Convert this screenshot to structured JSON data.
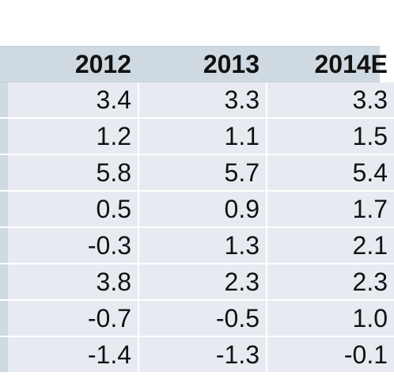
{
  "table": {
    "headers": [
      "2012",
      "2013",
      "2014E"
    ],
    "rows": [
      [
        "3.4",
        "3.3",
        "3.3"
      ],
      [
        "1.2",
        "1.1",
        "1.5"
      ],
      [
        "5.8",
        "5.7",
        "5.4"
      ],
      [
        "0.5",
        "0.9",
        "1.7"
      ],
      [
        "-0.3",
        "1.3",
        "2.1"
      ],
      [
        "3.8",
        "2.3",
        "2.3"
      ],
      [
        "-0.7",
        "-0.5",
        "1.0"
      ],
      [
        "-1.4",
        "-1.3",
        "-0.1"
      ]
    ]
  },
  "colors": {
    "header_bg": "#cfd9e1",
    "cell_bg": "#e7ebf1",
    "text": "#111111"
  }
}
